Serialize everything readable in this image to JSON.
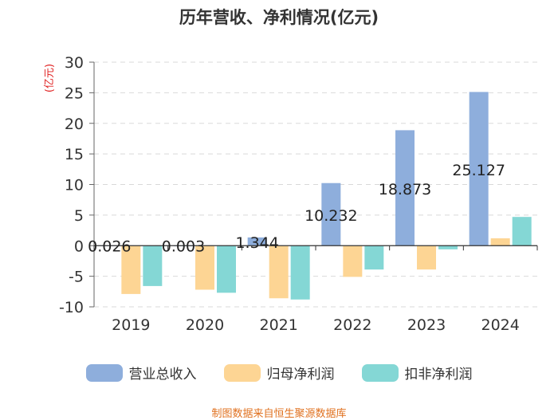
{
  "chart_data": {
    "type": "bar",
    "title": "历年营收、净利情况(亿元)",
    "ylabel": "(亿元)",
    "xlabel": "",
    "ylim": [
      -10,
      30
    ],
    "yticks": [
      30,
      25,
      20,
      15,
      10,
      5,
      0,
      -5,
      -10
    ],
    "grid": true,
    "legend_position": "bottom",
    "categories": [
      "2019",
      "2020",
      "2021",
      "2022",
      "2023",
      "2024"
    ],
    "series": [
      {
        "name": "营业总收入",
        "color": "#8eaedc",
        "values": [
          0.026,
          0.003,
          1.344,
          10.232,
          18.873,
          25.127
        ],
        "labels": [
          "0.026",
          "0.003",
          "1.344",
          "10.232",
          "18.873",
          "25.127"
        ]
      },
      {
        "name": "归母净利润",
        "color": "#fdd594",
        "values": [
          -7.9,
          -7.2,
          -8.6,
          -5.1,
          -3.9,
          1.2
        ]
      },
      {
        "name": "扣非净利润",
        "color": "#84d7d5",
        "values": [
          -6.6,
          -7.7,
          -8.8,
          -3.9,
          -0.6,
          4.7
        ]
      }
    ],
    "source": "制图数据来自恒生聚源数据库"
  }
}
